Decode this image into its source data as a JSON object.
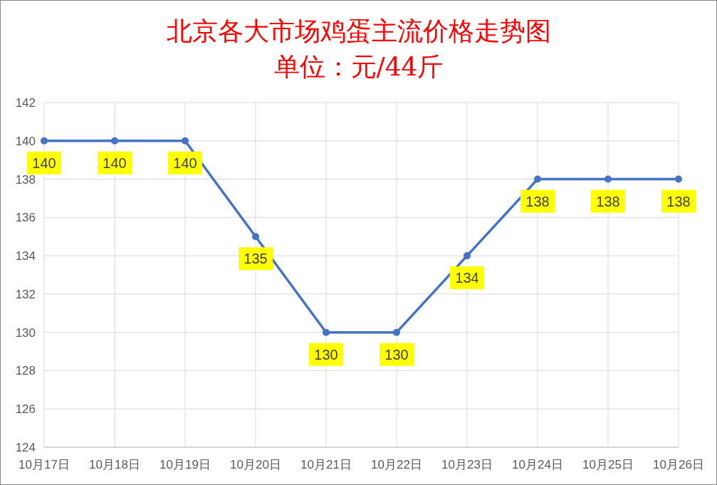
{
  "chart_data": {
    "type": "line",
    "title": "北京各大市场鸡蛋主流价格走势图",
    "subtitle": "单位：元/44斤",
    "categories": [
      "10月17日",
      "10月18日",
      "10月19日",
      "10月20日",
      "10月21日",
      "10月22日",
      "10月23日",
      "10月24日",
      "10月25日",
      "10月26日"
    ],
    "series": [
      {
        "color": "#4472c4",
        "values": [
          140,
          140,
          140,
          135,
          130,
          130,
          134,
          138,
          138,
          138
        ]
      }
    ],
    "ylim": [
      124,
      142
    ],
    "yticks": [
      124,
      126,
      128,
      130,
      132,
      134,
      136,
      138,
      140,
      142
    ],
    "grid": true,
    "marker": "circle",
    "line_style": "solid",
    "data_labels": true
  }
}
